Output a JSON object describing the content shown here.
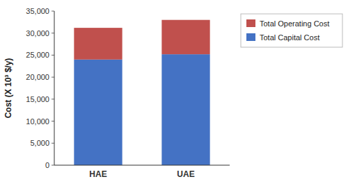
{
  "chart_data": {
    "type": "bar",
    "stacked": true,
    "categories": [
      "HAE",
      "UAE"
    ],
    "series": [
      {
        "name": "Total Capital Cost",
        "color": "#4472C4",
        "values": [
          24000,
          25200
        ]
      },
      {
        "name": "Total Operating Cost",
        "color": "#C0504D",
        "values": [
          7200,
          7800
        ]
      }
    ],
    "ylabel": "Cost (X 10³ $/y)",
    "ylim": [
      0,
      35000
    ],
    "yticks": [
      0,
      {
        "value": 5000,
        "label": "5,000"
      },
      {
        "value": 10000,
        "label": "10,000"
      },
      {
        "value": 15000,
        "label": "15,000"
      },
      {
        "value": 20000,
        "label": "20,000"
      },
      {
        "value": 25000,
        "label": "25,000"
      },
      {
        "value": 30000,
        "label": "30,000"
      },
      {
        "value": 35000,
        "label": "35,000"
      }
    ],
    "grid": false,
    "legend": "upper right"
  }
}
